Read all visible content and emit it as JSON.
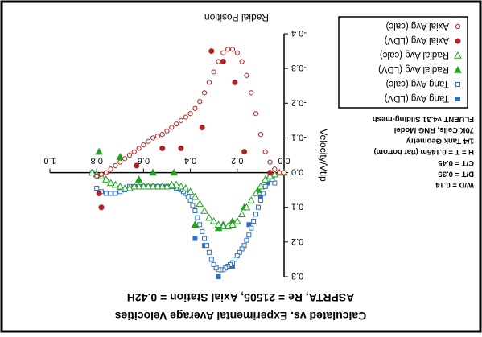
{
  "chart_data": {
    "type": "scatter",
    "title": "Calculated vs. Experimental Average Velocities",
    "subtitle": "ASPRTA, Re = 21505, Axial Station = 0.42H",
    "xlabel": "Radial Position",
    "ylabel": "Velocity/Vtip",
    "xlim": [
      0.0,
      1.0
    ],
    "ylim": [
      -0.4,
      0.3
    ],
    "y_reversed": true,
    "x_ticks": [
      "0.0",
      "0.2",
      "0.4",
      "0.6",
      "0.8",
      "1.0"
    ],
    "y_ticks": [
      "-0.4",
      "-0.3",
      "-0.2",
      "-0.1",
      "0.0",
      "0.1",
      "0.2",
      "0.3"
    ],
    "grid": false,
    "legend_position": "top-right",
    "annotations": [
      "W/D = 0.14",
      "D/T = 0.35",
      "C/T = 0.45",
      "H = T = 0.145m (flat bottom)",
      "1/4 Tank Geometry",
      "70K Cells, RNG Model",
      "FLUENT v4.31 Sliding-mesh"
    ],
    "series": [
      {
        "name": "Tang Avg (LDV)",
        "marker": "square-filled",
        "color": "#2f6fc7",
        "x": [
          0.07,
          0.1,
          0.15,
          0.22,
          0.28,
          0.34,
          0.38
        ],
        "y": [
          0.03,
          0.07,
          0.15,
          0.27,
          0.3,
          0.21,
          0.19
        ]
      },
      {
        "name": "Tang Avg (calc)",
        "marker": "square-open",
        "color": "#2f6fc7",
        "x": [
          0.04,
          0.05,
          0.06,
          0.07,
          0.08,
          0.09,
          0.1,
          0.11,
          0.12,
          0.13,
          0.14,
          0.15,
          0.16,
          0.17,
          0.18,
          0.19,
          0.2,
          0.21,
          0.22,
          0.23,
          0.24,
          0.25,
          0.26,
          0.27,
          0.28,
          0.29,
          0.3,
          0.31,
          0.32,
          0.33,
          0.34,
          0.35,
          0.36,
          0.37,
          0.38,
          0.39,
          0.4,
          0.41,
          0.42,
          0.43,
          0.44,
          0.45,
          0.46,
          0.47,
          0.48,
          0.49,
          0.5,
          0.52,
          0.54,
          0.56,
          0.58,
          0.6,
          0.62,
          0.64,
          0.66,
          0.68,
          0.7,
          0.72,
          0.74,
          0.76,
          0.78,
          0.8,
          0.82
        ],
        "y": [
          0.03,
          0.02,
          0.01,
          0.02,
          0.04,
          0.06,
          0.08,
          0.1,
          0.12,
          0.14,
          0.16,
          0.18,
          0.195,
          0.21,
          0.22,
          0.23,
          0.24,
          0.25,
          0.26,
          0.265,
          0.27,
          0.275,
          0.28,
          0.28,
          0.28,
          0.275,
          0.265,
          0.25,
          0.23,
          0.21,
          0.19,
          0.17,
          0.15,
          0.13,
          0.11,
          0.095,
          0.08,
          0.07,
          0.06,
          0.055,
          0.05,
          0.045,
          0.045,
          0.04,
          0.04,
          0.04,
          0.04,
          0.04,
          0.04,
          0.04,
          0.04,
          0.04,
          0.04,
          0.04,
          0.04,
          0.05,
          0.055,
          0.06,
          0.06,
          0.06,
          0.055,
          0.045,
          0.0
        ]
      },
      {
        "name": "Radial Avg (LDV)",
        "marker": "triangle-filled",
        "color": "#22a122",
        "x": [
          0.11,
          0.17,
          0.22,
          0.26,
          0.28,
          0.38,
          0.47,
          0.56,
          0.62,
          0.7,
          0.79
        ],
        "y": [
          0.05,
          0.1,
          0.14,
          0.15,
          0.16,
          0.15,
          0.0,
          0.0,
          0.02,
          -0.045,
          -0.06
        ]
      },
      {
        "name": "Radial Avg (calc)",
        "marker": "triangle-open",
        "color": "#22a122",
        "x": [
          0.0,
          0.02,
          0.04,
          0.06,
          0.08,
          0.1,
          0.12,
          0.14,
          0.16,
          0.18,
          0.2,
          0.22,
          0.24,
          0.26,
          0.28,
          0.3,
          0.32,
          0.34,
          0.36,
          0.38,
          0.4,
          0.42,
          0.44,
          0.46,
          0.48,
          0.5,
          0.52,
          0.54,
          0.56,
          0.58,
          0.6,
          0.62,
          0.64,
          0.66,
          0.68,
          0.7,
          0.72,
          0.74,
          0.76,
          0.78,
          0.8,
          0.82
        ],
        "y": [
          0.0,
          0.0,
          0.005,
          0.01,
          0.02,
          0.04,
          0.06,
          0.08,
          0.1,
          0.12,
          0.14,
          0.15,
          0.155,
          0.155,
          0.15,
          0.14,
          0.13,
          0.11,
          0.09,
          0.07,
          0.055,
          0.045,
          0.04,
          0.035,
          0.035,
          0.04,
          0.04,
          0.04,
          0.04,
          0.04,
          0.04,
          0.04,
          0.04,
          0.045,
          0.045,
          0.04,
          0.035,
          0.03,
          0.02,
          0.01,
          0.005,
          0.0
        ]
      },
      {
        "name": "Axial Avg (LDV)",
        "marker": "circle-filled",
        "color": "#b22222",
        "x": [
          0.06,
          0.17,
          0.21,
          0.26,
          0.31,
          0.35,
          0.44,
          0.52,
          0.63,
          0.78,
          0.79
        ],
        "y": [
          0.0,
          -0.06,
          -0.26,
          -0.32,
          -0.35,
          -0.13,
          -0.07,
          -0.07,
          -0.02,
          0.1,
          0.06
        ]
      },
      {
        "name": "Axial Avg (calc)",
        "marker": "circle-open",
        "color": "#b22222",
        "x": [
          0.0,
          0.02,
          0.04,
          0.06,
          0.08,
          0.1,
          0.12,
          0.14,
          0.16,
          0.18,
          0.2,
          0.22,
          0.24,
          0.26,
          0.28,
          0.3,
          0.32,
          0.34,
          0.36,
          0.38,
          0.4,
          0.42,
          0.44,
          0.46,
          0.48,
          0.5,
          0.52,
          0.54,
          0.56,
          0.58,
          0.6,
          0.62,
          0.64,
          0.66,
          0.68,
          0.7,
          0.72,
          0.74,
          0.76,
          0.78,
          0.8
        ],
        "y": [
          0.0,
          0.0,
          -0.01,
          -0.03,
          -0.06,
          -0.11,
          -0.17,
          -0.23,
          -0.28,
          -0.32,
          -0.345,
          -0.355,
          -0.355,
          -0.345,
          -0.32,
          -0.29,
          -0.26,
          -0.23,
          -0.205,
          -0.185,
          -0.17,
          -0.16,
          -0.15,
          -0.14,
          -0.13,
          -0.12,
          -0.11,
          -0.105,
          -0.1,
          -0.09,
          -0.08,
          -0.07,
          -0.06,
          -0.05,
          -0.04,
          -0.03,
          -0.02,
          -0.01,
          0.0,
          0.005,
          0.01
        ]
      }
    ]
  }
}
